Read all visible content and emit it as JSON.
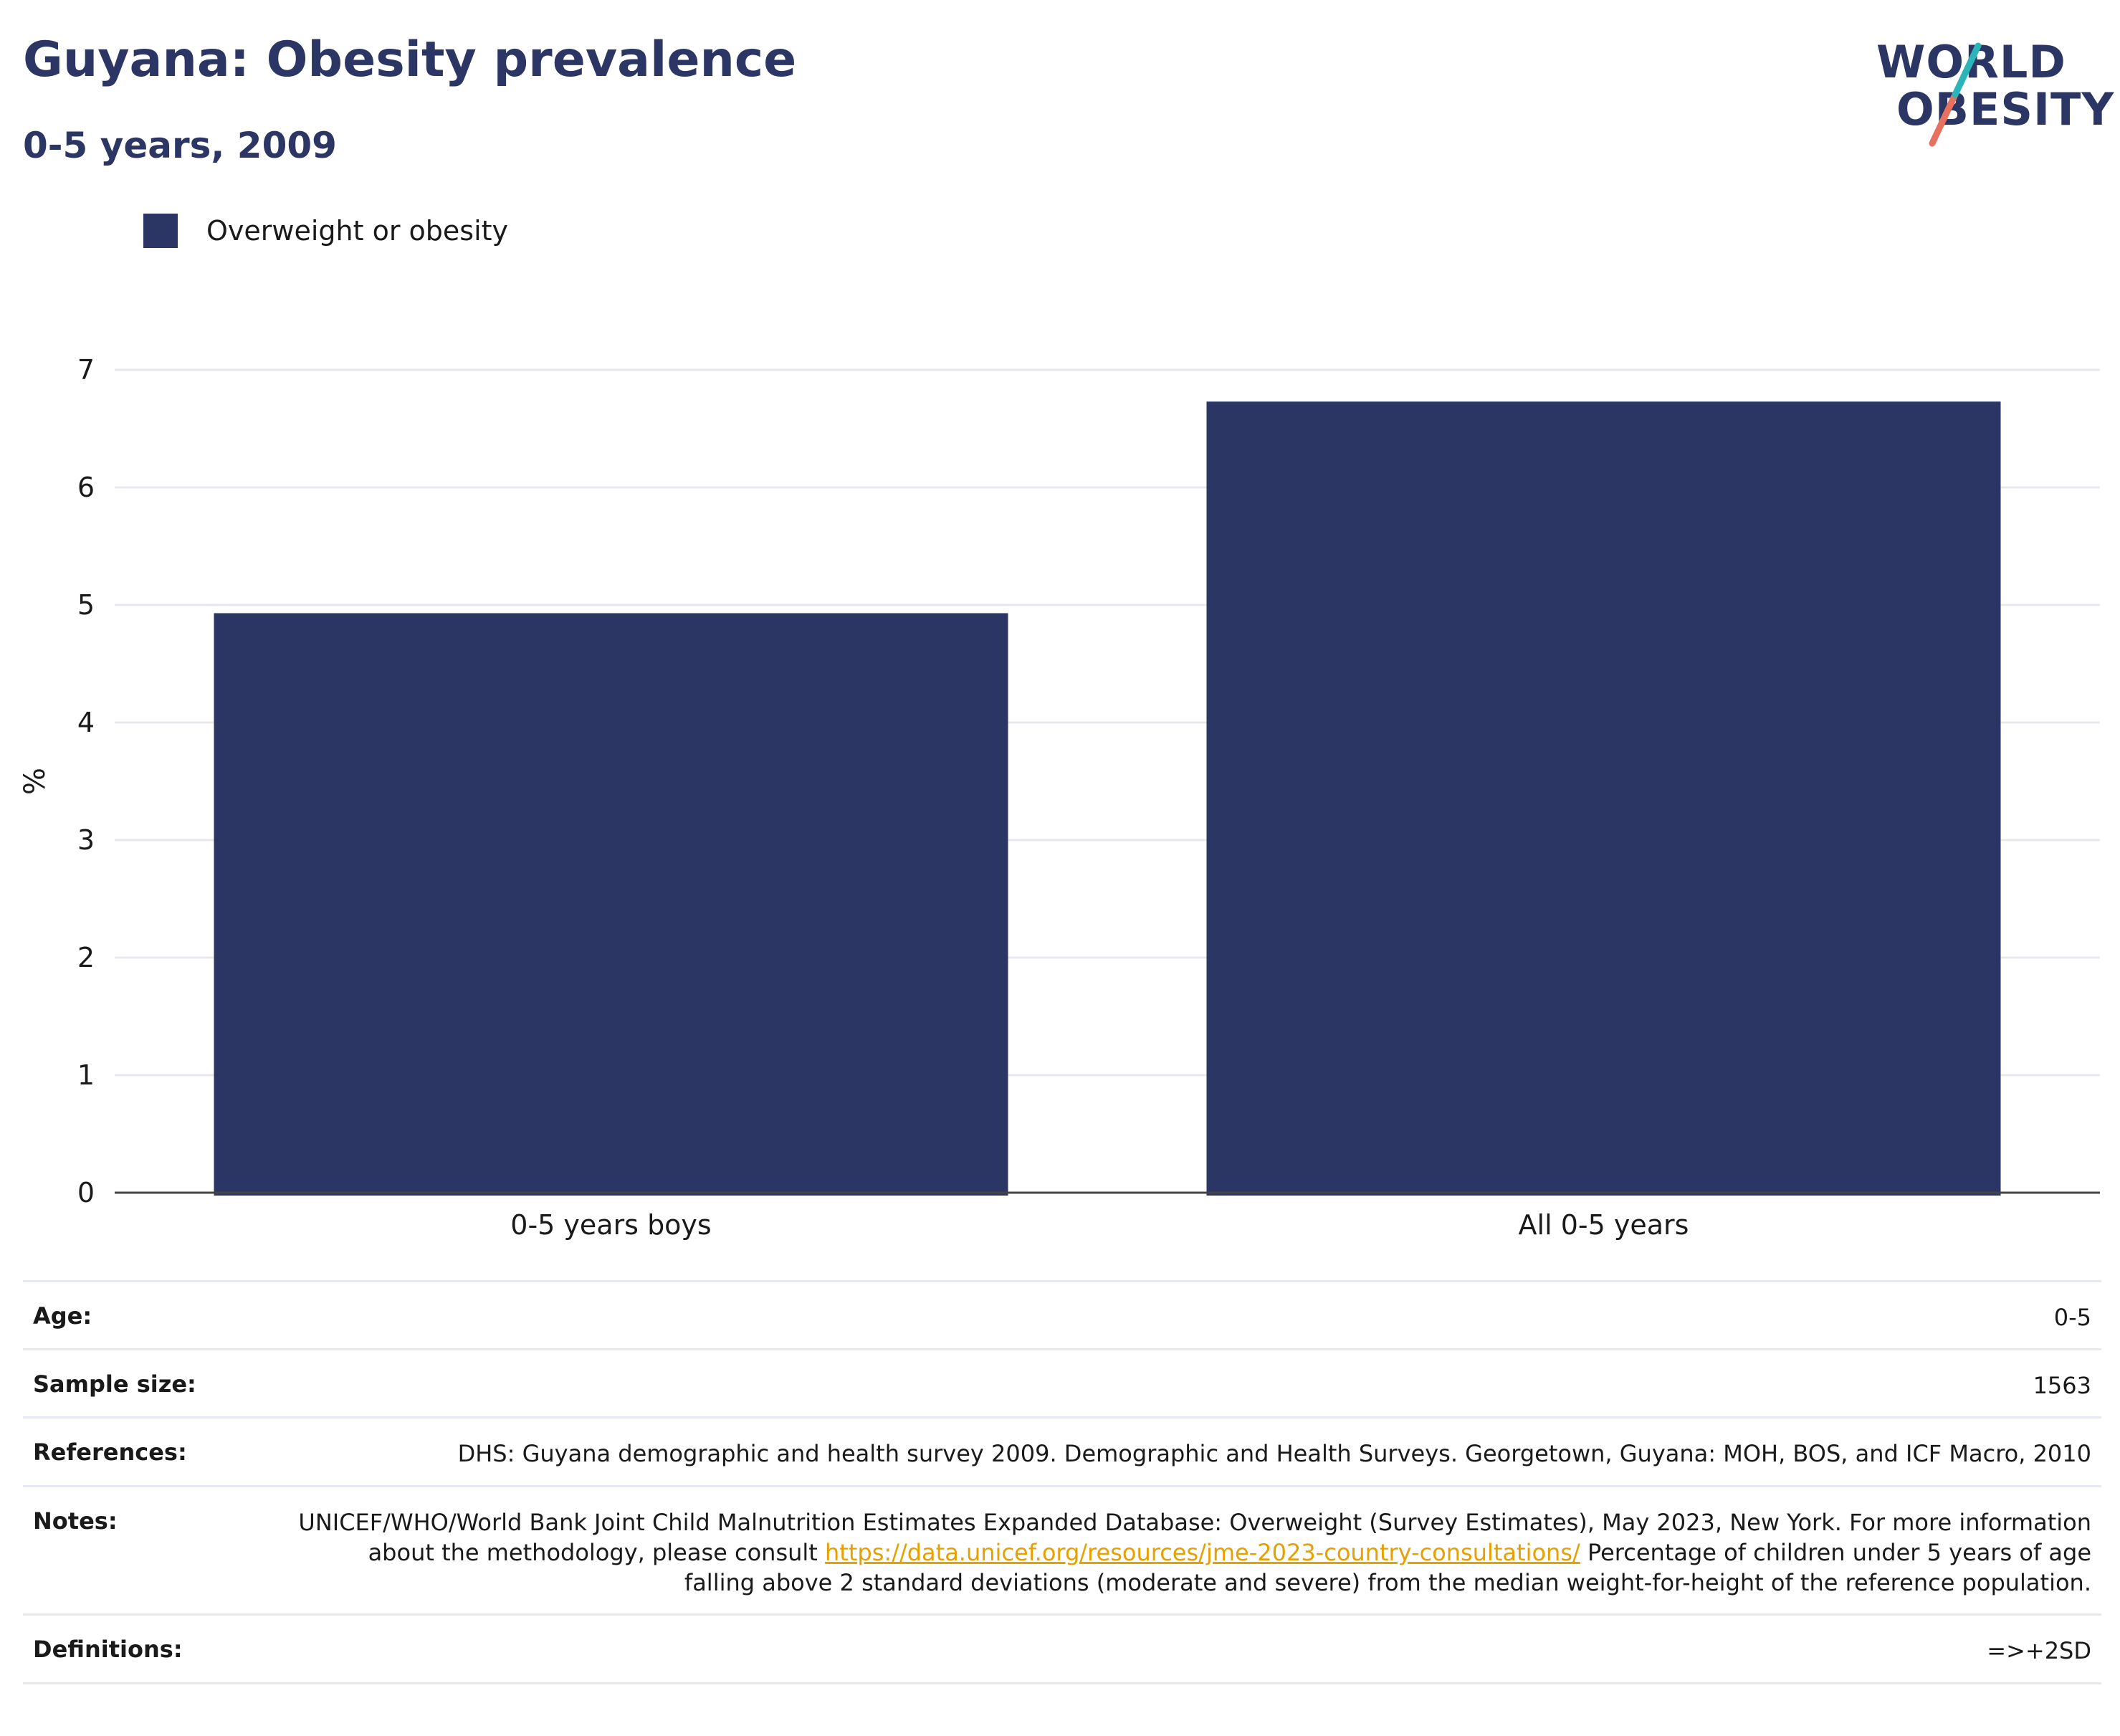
{
  "header": {
    "title": "Guyana: Obesity prevalence",
    "subtitle": "0-5 years, 2009",
    "logo_line1": "WORLD",
    "logo_line2": "OBESITY"
  },
  "legend": {
    "label": "Overweight or obesity"
  },
  "chart_data": {
    "type": "bar",
    "categories": [
      "0-5 years boys",
      "All 0-5 years"
    ],
    "series": [
      {
        "name": "Overweight or obesity",
        "values": [
          4.93,
          6.73
        ],
        "color": "#2b3664"
      }
    ],
    "ylabel": "%",
    "xlabel": "",
    "ylim": [
      0,
      7
    ],
    "yticks": [
      0,
      1,
      2,
      3,
      4,
      5,
      6,
      7
    ],
    "grid": true,
    "legend_position": "top-left"
  },
  "info": {
    "age": {
      "label": "Age:",
      "value": "0-5"
    },
    "sample_size": {
      "label": "Sample size:",
      "value": "1563"
    },
    "references": {
      "label": "References:",
      "value": "DHS: Guyana demographic and health survey 2009. Demographic and Health Surveys. Georgetown, Guyana: MOH, BOS, and ICF Macro, 2010"
    },
    "notes": {
      "label": "Notes:",
      "text_before": "UNICEF/WHO/World Bank Joint Child Malnutrition Estimates Expanded Database: Overweight (Survey Estimates), May 2023, New York. For more information about the methodology, please consult ",
      "link": "https://data.unicef.org/resources/jme-2023-country-consultations/",
      "text_after": " Percentage of children under 5 years of age falling above 2 standard deviations (moderate and severe) from the median weight-for-height of the reference population."
    },
    "definitions": {
      "label": "Definitions:",
      "value": "=>+2SD"
    }
  },
  "colors": {
    "brand_navy": "#2b3664",
    "logo_teal": "#2bb5b8",
    "logo_coral": "#e8705f",
    "link": "#e8a000"
  }
}
